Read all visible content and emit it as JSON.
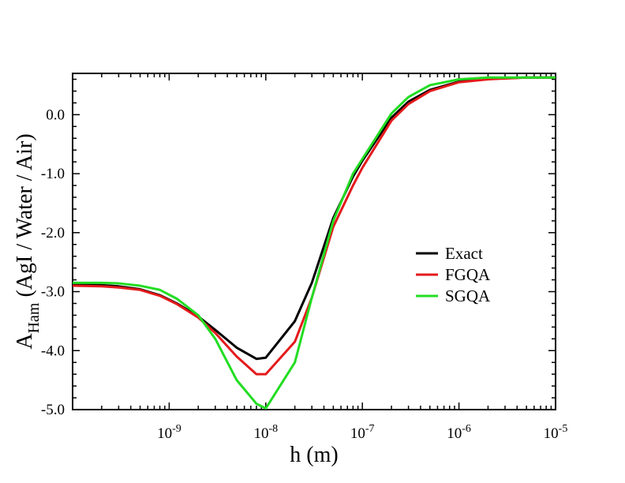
{
  "chart_data": {
    "type": "line",
    "title": "",
    "xlabel": "h (m)",
    "ylabel": {
      "base": "A",
      "sub": "Ham",
      "rest": " (AgI / Water / Air)"
    },
    "xscale": "log",
    "xlim": [
      1e-10,
      1e-05
    ],
    "ylim": [
      -5.0,
      0.7
    ],
    "x_ticks": [
      {
        "value": 1e-09,
        "base": "10",
        "exp": "-9"
      },
      {
        "value": 1e-08,
        "base": "10",
        "exp": "-8"
      },
      {
        "value": 1e-07,
        "base": "10",
        "exp": "-7"
      },
      {
        "value": 1e-06,
        "base": "10",
        "exp": "-6"
      },
      {
        "value": 1e-05,
        "base": "10",
        "exp": "-5"
      }
    ],
    "y_ticks": [
      {
        "value": 0.0,
        "label": "0.0"
      },
      {
        "value": -1.0,
        "label": "-1.0"
      },
      {
        "value": -2.0,
        "label": "-2.0"
      },
      {
        "value": -3.0,
        "label": "-3.0"
      },
      {
        "value": -4.0,
        "label": "-4.0"
      },
      {
        "value": -5.0,
        "label": "-5.0"
      }
    ],
    "legend_position": "right-center",
    "series": [
      {
        "name": "Exact",
        "color": "#000000",
        "x": [
          1e-10,
          2e-10,
          3e-10,
          5e-10,
          8e-10,
          1.2e-09,
          2e-09,
          3e-09,
          5e-09,
          8e-09,
          1e-08,
          2e-08,
          3e-08,
          5e-08,
          8e-08,
          1e-07,
          2e-07,
          3e-07,
          5e-07,
          1e-06,
          2e-06,
          5e-06,
          1e-05
        ],
        "y": [
          -2.88,
          -2.89,
          -2.91,
          -2.96,
          -3.06,
          -3.2,
          -3.42,
          -3.65,
          -3.95,
          -4.14,
          -4.12,
          -3.5,
          -2.85,
          -1.75,
          -1.05,
          -0.78,
          -0.05,
          0.22,
          0.42,
          0.56,
          0.61,
          0.63,
          0.63
        ]
      },
      {
        "name": "FGQA",
        "color": "#e41a1c",
        "x": [
          1e-10,
          2e-10,
          3e-10,
          5e-10,
          8e-10,
          1.2e-09,
          2e-09,
          3e-09,
          5e-09,
          8e-09,
          1e-08,
          2e-08,
          3e-08,
          5e-08,
          8e-08,
          1e-07,
          2e-07,
          3e-07,
          5e-07,
          1e-06,
          2e-06,
          5e-06,
          1e-05
        ],
        "y": [
          -2.9,
          -2.91,
          -2.93,
          -2.97,
          -3.07,
          -3.21,
          -3.44,
          -3.7,
          -4.1,
          -4.4,
          -4.4,
          -3.85,
          -3.1,
          -1.9,
          -1.2,
          -0.9,
          -0.1,
          0.18,
          0.4,
          0.55,
          0.6,
          0.63,
          0.63
        ]
      },
      {
        "name": "SGQA",
        "color": "#22dd22",
        "x": [
          1e-10,
          2e-10,
          3e-10,
          5e-10,
          8e-10,
          1.2e-09,
          2e-09,
          3e-09,
          5e-09,
          8e-09,
          1e-08,
          2e-08,
          3e-08,
          5e-08,
          8e-08,
          1e-07,
          2e-07,
          3e-07,
          5e-07,
          1e-06,
          2e-06,
          5e-06,
          1e-05
        ],
        "y": [
          -2.85,
          -2.85,
          -2.86,
          -2.9,
          -2.97,
          -3.12,
          -3.4,
          -3.8,
          -4.5,
          -4.9,
          -4.98,
          -4.2,
          -3.1,
          -1.8,
          -1.0,
          -0.75,
          0.02,
          0.3,
          0.5,
          0.6,
          0.63,
          0.63,
          0.63
        ]
      }
    ]
  }
}
